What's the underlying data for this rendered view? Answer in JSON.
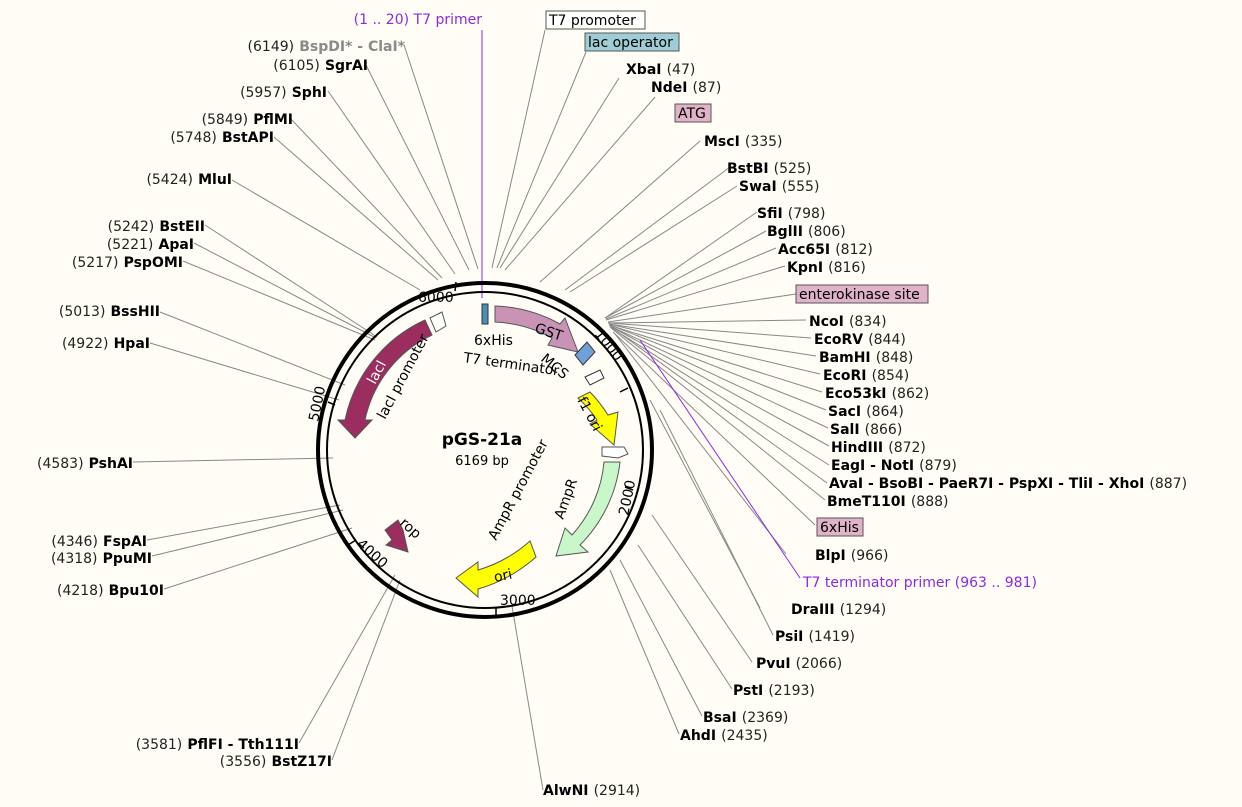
{
  "plasmid": {
    "name": "pGS-21a",
    "length": "6169 bp"
  },
  "ticks": [
    "1000",
    "2000",
    "3000",
    "4000",
    "5000",
    "6000"
  ],
  "primers": {
    "top": {
      "range": "(1 .. 20)",
      "name": "T7 primer"
    },
    "bottom": {
      "name": "T7 terminator primer",
      "range": "(963 .. 981)"
    }
  },
  "boxed_features": {
    "t7_promoter": "T7 promoter",
    "lac_operator": "lac operator",
    "atg": "ATG",
    "enterokinase": "enterokinase site",
    "his6": "6xHis"
  },
  "feature_labels": {
    "laci": "lacI",
    "laci_promoter": "lacI promoter",
    "gst": "GST",
    "his6_inner": "6xHis",
    "t7_terminator": "T7 terminator",
    "mcs": "MCS",
    "f1_ori": "f1 ori",
    "ampr": "AmpR",
    "ampr_promoter": "AmpR promoter",
    "ori": "ori",
    "rop": "rop"
  },
  "sites": {
    "xbai": {
      "name": "XbaI",
      "pos": "(47)"
    },
    "ndei": {
      "name": "NdeI",
      "pos": "(87)"
    },
    "msci": {
      "name": "MscI",
      "pos": "(335)"
    },
    "bstbi": {
      "name": "BstBI",
      "pos": "(525)"
    },
    "swai": {
      "name": "SwaI",
      "pos": "(555)"
    },
    "sfii": {
      "name": "SfiI",
      "pos": "(798)"
    },
    "bglii": {
      "name": "BglII",
      "pos": "(806)"
    },
    "acc65i": {
      "name": "Acc65I",
      "pos": "(812)"
    },
    "kpni": {
      "name": "KpnI",
      "pos": "(816)"
    },
    "ncoi": {
      "name": "NcoI",
      "pos": "(834)"
    },
    "ecorv": {
      "name": "EcoRV",
      "pos": "(844)"
    },
    "bamhi": {
      "name": "BamHI",
      "pos": "(848)"
    },
    "ecori": {
      "name": "EcoRI",
      "pos": "(854)"
    },
    "eco53ki": {
      "name": "Eco53kI",
      "pos": "(862)"
    },
    "saci": {
      "name": "SacI",
      "pos": "(864)"
    },
    "sali": {
      "name": "SalI",
      "pos": "(866)"
    },
    "hindiii": {
      "name": "HindIII",
      "pos": "(872)"
    },
    "eagi": {
      "name": "EagI - NotI",
      "pos": "(879)"
    },
    "avai": {
      "name": "AvaI - BsoBI - PaeR7I - PspXI - TliI - XhoI",
      "pos": "(887)"
    },
    "bmet110i": {
      "name": "BmeT110I",
      "pos": "(888)"
    },
    "blpi": {
      "name": "BlpI",
      "pos": "(966)"
    },
    "draiii": {
      "name": "DraIII",
      "pos": "(1294)"
    },
    "psii": {
      "name": "PsiI",
      "pos": "(1419)"
    },
    "pvui": {
      "name": "PvuI",
      "pos": "(2066)"
    },
    "psti": {
      "name": "PstI",
      "pos": "(2193)"
    },
    "bsai": {
      "name": "BsaI",
      "pos": "(2369)"
    },
    "ahdi": {
      "name": "AhdI",
      "pos": "(2435)"
    },
    "alwni": {
      "name": "AlwNI",
      "pos": "(2914)"
    },
    "bstz17i": {
      "name": "BstZ17I",
      "pos": "(3556)"
    },
    "pflfi": {
      "name": "PflFI - Tth111I",
      "pos": "(3581)"
    },
    "bpu10i": {
      "name": "Bpu10I",
      "pos": "(4218)"
    },
    "ppumi": {
      "name": "PpuMI",
      "pos": "(4318)"
    },
    "fspai": {
      "name": "FspAI",
      "pos": "(4346)"
    },
    "pshai": {
      "name": "PshAI",
      "pos": "(4583)"
    },
    "hpai": {
      "name": "HpaI",
      "pos": "(4922)"
    },
    "bsshii": {
      "name": "BssHII",
      "pos": "(5013)"
    },
    "pspomi": {
      "name": "PspOMI",
      "pos": "(5217)"
    },
    "apai": {
      "name": "ApaI",
      "pos": "(5221)"
    },
    "bsteii": {
      "name": "BstEII",
      "pos": "(5242)"
    },
    "mlui": {
      "name": "MluI",
      "pos": "(5424)"
    },
    "bstapi": {
      "name": "BstAPI",
      "pos": "(5748)"
    },
    "pflmi": {
      "name": "PflMI",
      "pos": "(5849)"
    },
    "sphi": {
      "name": "SphI",
      "pos": "(5957)"
    },
    "sgrai": {
      "name": "SgrAI",
      "pos": "(6105)"
    },
    "bspdi": {
      "name": "BspDI* - ClaI*",
      "pos": "(6149)"
    }
  },
  "colors": {
    "laci": "#9b2d5f",
    "gst": "#c993b6",
    "rop": "#9b2d5f",
    "ori": "#ffff00",
    "f1_ori": "#ffff00",
    "ampr": "#c9f7c9",
    "his": "#4a8fb5",
    "primer": "#8a2be2",
    "lac_operator_box": "#9fcdd5",
    "pink_box": "#e0b3c8"
  }
}
